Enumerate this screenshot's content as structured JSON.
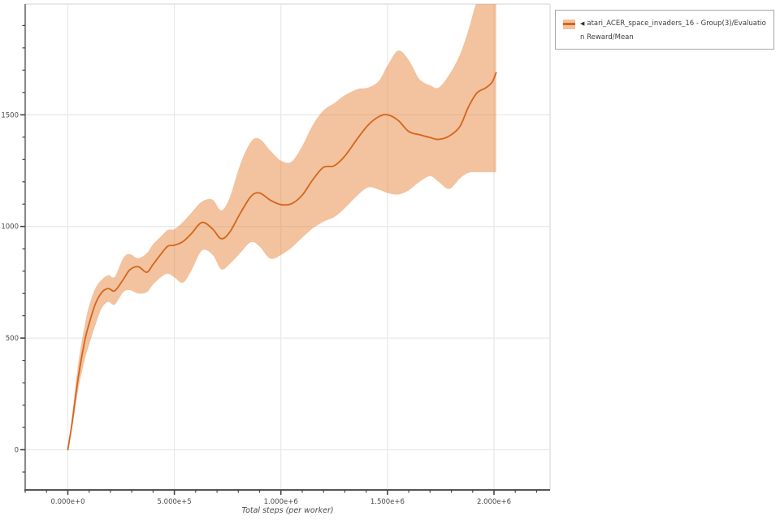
{
  "legend": {
    "marker": "◀",
    "label": "atari_ACER_space_invaders_16 - Group(3)/Evaluation Reward/Mean"
  },
  "colors": {
    "line": "#d2661c",
    "band": "#e8853d",
    "band_opacity": 0.5,
    "grid": "#e9e9e9",
    "border": "#e2e2e2",
    "spine_left": "#8a8a8a",
    "spine_bottom": "#555555",
    "tick": "#444444",
    "tick_label": "#4a4a4a"
  },
  "chart_data": {
    "type": "line",
    "title": "",
    "xlabel": "Total steps (per worker)",
    "ylabel": "",
    "x_range": [
      -200000,
      2263000
    ],
    "y_range": [
      -180,
      1996
    ],
    "grid": "major",
    "legend_position": "outside-top-right",
    "x_ticks": [
      {
        "value": 0,
        "label": "0.000e+0"
      },
      {
        "value": 500000,
        "label": "5.000e+5"
      },
      {
        "value": 1000000,
        "label": "1.000e+6"
      },
      {
        "value": 1500000,
        "label": "1.500e+6"
      },
      {
        "value": 2000000,
        "label": "2.000e+6"
      }
    ],
    "y_ticks": [
      {
        "value": 0,
        "label": "0"
      },
      {
        "value": 500,
        "label": "500"
      },
      {
        "value": 1000,
        "label": "1000"
      },
      {
        "value": 1500,
        "label": "1500"
      }
    ],
    "x_minor_tick_step": 100000,
    "y_minor_tick_step": 100,
    "series": [
      {
        "name": "atari_ACER_space_invaders_16 - Group(3)/Evaluation Reward/Mean",
        "x": [
          0,
          20000,
          50000,
          80000,
          100000,
          130000,
          160000,
          190000,
          220000,
          260000,
          290000,
          330000,
          370000,
          400000,
          440000,
          470000,
          500000,
          540000,
          580000,
          630000,
          680000,
          720000,
          760000,
          810000,
          860000,
          900000,
          950000,
          1000000,
          1050000,
          1100000,
          1150000,
          1200000,
          1250000,
          1300000,
          1360000,
          1410000,
          1460000,
          1500000,
          1550000,
          1600000,
          1650000,
          1700000,
          1740000,
          1790000,
          1840000,
          1880000,
          1920000,
          1960000,
          1990000,
          2010000
        ],
        "mean": [
          0,
          120,
          330,
          490,
          565,
          655,
          705,
          722,
          712,
          762,
          805,
          820,
          795,
          830,
          880,
          912,
          916,
          932,
          968,
          1018,
          988,
          945,
          975,
          1060,
          1135,
          1150,
          1118,
          1098,
          1102,
          1140,
          1210,
          1265,
          1272,
          1315,
          1395,
          1455,
          1492,
          1500,
          1475,
          1425,
          1411,
          1398,
          1390,
          1405,
          1448,
          1535,
          1598,
          1620,
          1645,
          1688
        ],
        "lower": [
          0,
          95,
          275,
          405,
          470,
          560,
          635,
          662,
          650,
          705,
          715,
          700,
          705,
          740,
          775,
          788,
          772,
          748,
          802,
          892,
          872,
          808,
          832,
          882,
          930,
          910,
          856,
          872,
          905,
          950,
          992,
          1022,
          1042,
          1082,
          1140,
          1175,
          1165,
          1150,
          1143,
          1162,
          1200,
          1225,
          1200,
          1168,
          1215,
          1240,
          1243,
          1243,
          1243,
          1243
        ],
        "upper": [
          0,
          150,
          395,
          560,
          645,
          725,
          762,
          782,
          775,
          858,
          876,
          858,
          880,
          920,
          958,
          985,
          988,
          1020,
          1062,
          1112,
          1120,
          1072,
          1130,
          1280,
          1380,
          1392,
          1340,
          1295,
          1290,
          1360,
          1455,
          1520,
          1552,
          1588,
          1615,
          1622,
          1652,
          1720,
          1788,
          1745,
          1660,
          1632,
          1622,
          1680,
          1770,
          1880,
          2010,
          2070,
          2100,
          2120
        ]
      }
    ]
  }
}
